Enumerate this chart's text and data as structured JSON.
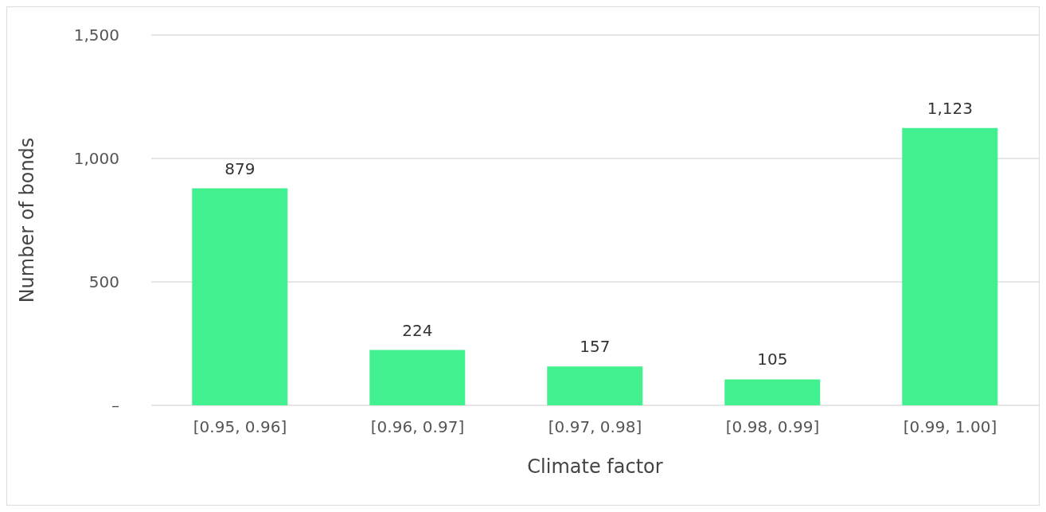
{
  "chart_data": {
    "type": "bar",
    "xlabel": "Climate factor",
    "ylabel": "Number of bonds",
    "categories": [
      "[0.95, 0.96]",
      "[0.96, 0.97]",
      "[0.97, 0.98]",
      "[0.98, 0.99]",
      "[0.99, 1.00]"
    ],
    "values": [
      879,
      224,
      157,
      105,
      1123
    ],
    "value_labels": [
      "879",
      "224",
      "157",
      "105",
      "1,123"
    ],
    "color": "#41f08f",
    "ylim": [
      0,
      1500
    ],
    "yticks": [
      {
        "value": 0,
        "label": "–"
      },
      {
        "value": 500,
        "label": "500"
      },
      {
        "value": 1000,
        "label": "1,000"
      },
      {
        "value": 1500,
        "label": "1,500"
      }
    ],
    "grid": "y",
    "legend": false
  }
}
